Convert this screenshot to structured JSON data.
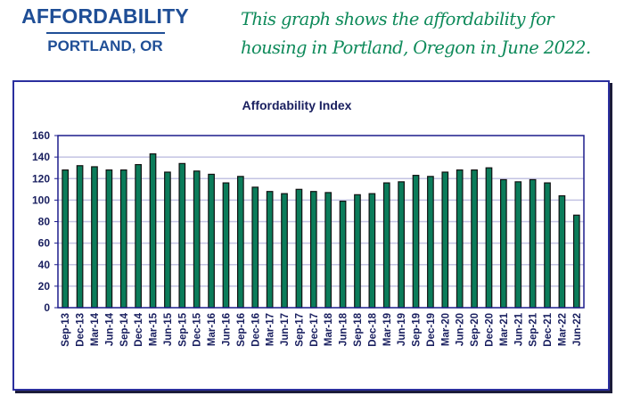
{
  "header": {
    "title": "AFFORDABILITY",
    "subtitle": "PORTLAND, OR",
    "description": "This graph shows the affordability for housing in Portland, Oregon in June 2022."
  },
  "colors": {
    "header_blue": "#1f4e96",
    "description_green": "#0e8a5a",
    "frame_border": "#2b2f9e",
    "axis_navy": "#1a2060",
    "bar_fill": "#0b7c5a",
    "bar_outline": "#111111",
    "gridline": "#c3c3e3",
    "plot_border": "#1d1d8c"
  },
  "chart_data": {
    "type": "bar",
    "title": "Affordability Index",
    "xlabel": "",
    "ylabel": "",
    "ylim": [
      0,
      160
    ],
    "yticks": [
      0,
      20,
      40,
      60,
      80,
      100,
      120,
      140,
      160
    ],
    "grid": true,
    "legend": "none",
    "categories": [
      "Sep-13",
      "Dec-13",
      "Mar-14",
      "Jun-14",
      "Sep-14",
      "Dec-14",
      "Mar-15",
      "Jun-15",
      "Sep-15",
      "Dec-15",
      "Mar-16",
      "Jun-16",
      "Sep-16",
      "Dec-16",
      "Mar-17",
      "Jun-17",
      "Sep-17",
      "Dec-17",
      "Mar-18",
      "Jun-18",
      "Sep-18",
      "Dec-18",
      "Mar-19",
      "Jun-19",
      "Sep-19",
      "Dec-19",
      "Mar-20",
      "Jun-20",
      "Sep-20",
      "Dec-20",
      "Mar-21",
      "Jun-21",
      "Sep-21",
      "Dec-21",
      "Mar-22",
      "Jun-22"
    ],
    "values": [
      128,
      132,
      131,
      128,
      128,
      133,
      143,
      126,
      134,
      127,
      124,
      116,
      122,
      112,
      108,
      106,
      110,
      108,
      107,
      99,
      105,
      106,
      116,
      117,
      123,
      122,
      126,
      128,
      128,
      130,
      119,
      117,
      119,
      116,
      104,
      86
    ]
  }
}
